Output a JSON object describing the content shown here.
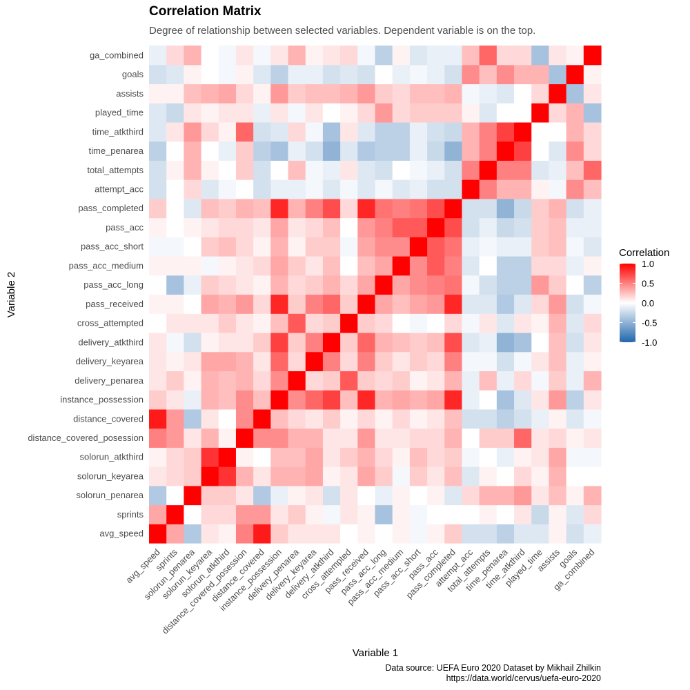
{
  "chart_data": {
    "type": "heatmap",
    "title": "Correlation Matrix",
    "subtitle": "Degree of relationship between selected variables. Dependent variable is on the top.",
    "xlabel": "Variable 1",
    "ylabel": "Variable 2",
    "variables": [
      "avg_speed",
      "sprints",
      "solorun_penarea",
      "solorun_keyarea",
      "solorun_atkthird",
      "distance_covered_posession",
      "distance_covered",
      "instance_possession",
      "delivery_penarea",
      "delivery_keyarea",
      "delivery_atkthird",
      "cross_attempted",
      "pass_received",
      "pass_acc_long",
      "pass_acc_medium",
      "pass_acc_short",
      "pass_acc",
      "pass_completed",
      "attempt_acc",
      "total_attempts",
      "time_penarea",
      "time_atkthird",
      "played_time",
      "assists",
      "goals",
      "ga_combined"
    ],
    "values": [
      [
        1.0,
        0.35,
        -0.35,
        0.1,
        0.05,
        0.5,
        0.9,
        0.2,
        0.1,
        0.1,
        0.1,
        0.0,
        0.05,
        0.0,
        0.05,
        -0.05,
        0.05,
        0.2,
        -0.2,
        -0.2,
        -0.3,
        -0.15,
        -0.15,
        0.05,
        -0.2,
        -0.1
      ],
      [
        0.35,
        1.0,
        0.0,
        0.15,
        0.15,
        0.4,
        0.4,
        0.1,
        0.2,
        0.05,
        -0.05,
        0.1,
        0.05,
        -0.4,
        0.05,
        -0.05,
        0.0,
        0.0,
        0.0,
        0.05,
        0.0,
        0.1,
        -0.25,
        0.05,
        -0.15,
        0.15
      ],
      [
        -0.35,
        0.0,
        1.0,
        0.2,
        0.2,
        0.1,
        -0.35,
        -0.1,
        0.05,
        0.1,
        -0.2,
        0.1,
        0.0,
        -0.1,
        0.05,
        0.0,
        0.05,
        -0.15,
        0.15,
        0.3,
        0.3,
        0.4,
        0.1,
        0.25,
        0.05,
        0.3
      ],
      [
        0.1,
        0.15,
        0.2,
        1.0,
        0.8,
        0.3,
        0.1,
        0.3,
        0.3,
        0.35,
        0.05,
        0.1,
        0.35,
        0.2,
        -0.05,
        0.2,
        0.1,
        0.25,
        -0.15,
        0.05,
        0.0,
        0.15,
        0.05,
        0.3,
        0.0,
        0.0
      ],
      [
        0.05,
        0.15,
        0.2,
        0.8,
        1.0,
        0.05,
        0.0,
        0.25,
        0.25,
        0.35,
        0.1,
        0.2,
        0.3,
        0.15,
        0.05,
        0.25,
        0.15,
        0.2,
        -0.05,
        0.0,
        -0.1,
        0.05,
        0.1,
        0.35,
        -0.05,
        -0.05
      ],
      [
        0.5,
        0.4,
        0.1,
        0.3,
        0.05,
        1.0,
        0.45,
        0.45,
        0.3,
        0.3,
        0.1,
        0.1,
        0.4,
        0.1,
        0.1,
        0.15,
        0.15,
        0.3,
        0.0,
        0.2,
        0.2,
        0.6,
        0.1,
        0.15,
        0.05,
        0.1
      ],
      [
        0.9,
        0.4,
        -0.35,
        0.1,
        0.0,
        0.45,
        1.0,
        0.25,
        0.15,
        0.1,
        0.2,
        0.05,
        0.15,
        0.05,
        0.15,
        0.05,
        0.1,
        0.25,
        -0.2,
        -0.2,
        -0.3,
        -0.2,
        -0.1,
        0.05,
        -0.15,
        -0.05
      ],
      [
        0.2,
        0.1,
        -0.1,
        0.3,
        0.25,
        0.45,
        0.25,
        1.0,
        0.45,
        0.6,
        0.75,
        0.25,
        0.85,
        0.3,
        0.35,
        0.3,
        0.35,
        0.85,
        -0.1,
        0.0,
        -0.4,
        -0.15,
        0.1,
        0.4,
        -0.3,
        0.1
      ],
      [
        0.1,
        0.2,
        0.05,
        0.3,
        0.25,
        0.3,
        0.15,
        0.45,
        1.0,
        0.15,
        0.2,
        0.65,
        0.2,
        0.15,
        0.2,
        0.05,
        0.1,
        0.3,
        -0.1,
        0.25,
        -0.1,
        0.15,
        -0.05,
        0.2,
        -0.1,
        0.3
      ],
      [
        0.1,
        0.05,
        0.1,
        0.35,
        0.35,
        0.3,
        0.1,
        0.6,
        0.15,
        1.0,
        0.5,
        0.15,
        0.5,
        0.2,
        0.1,
        0.2,
        0.15,
        0.5,
        -0.05,
        -0.05,
        -0.2,
        -0.05,
        0.1,
        0.25,
        -0.1,
        0.05
      ],
      [
        0.1,
        -0.05,
        -0.2,
        0.05,
        0.1,
        0.1,
        0.2,
        0.75,
        0.2,
        0.5,
        1.0,
        0.2,
        0.6,
        0.3,
        0.25,
        0.2,
        0.25,
        0.7,
        -0.15,
        -0.1,
        -0.5,
        -0.4,
        0.0,
        0.25,
        -0.2,
        0.1
      ],
      [
        0.0,
        0.1,
        0.1,
        0.1,
        0.2,
        0.1,
        0.05,
        0.25,
        0.65,
        0.15,
        0.2,
        1.0,
        0.2,
        0.15,
        0.0,
        -0.05,
        0.0,
        0.15,
        -0.05,
        0.1,
        -0.15,
        0.1,
        0.05,
        0.3,
        -0.15,
        0.15
      ],
      [
        0.05,
        0.05,
        0.0,
        0.35,
        0.3,
        0.4,
        0.15,
        0.85,
        0.2,
        0.5,
        0.6,
        0.2,
        1.0,
        0.35,
        0.25,
        0.35,
        0.4,
        0.85,
        -0.15,
        -0.15,
        -0.35,
        -0.15,
        0.15,
        0.4,
        -0.2,
        -0.05
      ],
      [
        0.0,
        -0.4,
        -0.1,
        0.2,
        0.15,
        0.1,
        0.05,
        0.3,
        0.15,
        0.2,
        0.3,
        0.15,
        0.35,
        1.0,
        0.35,
        0.45,
        0.5,
        0.55,
        -0.05,
        -0.2,
        -0.3,
        -0.3,
        0.4,
        0.2,
        0.0,
        -0.3
      ],
      [
        0.05,
        0.05,
        0.05,
        -0.05,
        0.05,
        0.1,
        0.15,
        0.35,
        0.2,
        0.1,
        0.25,
        0.0,
        0.25,
        0.35,
        1.0,
        0.45,
        0.65,
        0.5,
        -0.15,
        0.0,
        -0.3,
        -0.3,
        0.15,
        0.15,
        -0.1,
        0.05
      ],
      [
        -0.05,
        -0.05,
        0.0,
        0.2,
        0.25,
        0.15,
        0.05,
        0.3,
        0.05,
        0.2,
        0.2,
        -0.05,
        0.35,
        0.45,
        0.45,
        1.0,
        0.65,
        0.55,
        -0.1,
        -0.05,
        -0.1,
        -0.1,
        0.2,
        0.25,
        -0.05,
        -0.15
      ],
      [
        0.05,
        0.0,
        0.05,
        0.1,
        0.15,
        0.15,
        0.1,
        0.35,
        0.1,
        0.15,
        0.25,
        0.0,
        0.4,
        0.5,
        0.65,
        0.65,
        1.0,
        0.7,
        -0.2,
        -0.1,
        -0.25,
        -0.2,
        0.2,
        0.25,
        -0.1,
        -0.1
      ],
      [
        0.2,
        0.0,
        -0.15,
        0.25,
        0.2,
        0.3,
        0.25,
        0.85,
        0.3,
        0.5,
        0.7,
        0.15,
        0.85,
        0.55,
        0.5,
        0.55,
        0.7,
        1.0,
        -0.2,
        -0.2,
        -0.5,
        -0.25,
        0.2,
        0.3,
        -0.2,
        -0.1
      ],
      [
        -0.2,
        0.0,
        0.15,
        -0.15,
        -0.05,
        0.0,
        -0.2,
        -0.1,
        -0.1,
        -0.05,
        -0.15,
        -0.05,
        -0.15,
        -0.05,
        -0.15,
        -0.1,
        -0.2,
        -0.2,
        1.0,
        0.5,
        0.3,
        0.3,
        0.05,
        -0.05,
        0.45,
        0.25
      ],
      [
        -0.2,
        0.05,
        0.3,
        0.05,
        0.0,
        0.2,
        -0.2,
        0.0,
        0.25,
        -0.05,
        -0.1,
        0.1,
        -0.15,
        -0.2,
        0.0,
        -0.05,
        -0.1,
        -0.2,
        0.5,
        1.0,
        0.5,
        0.5,
        -0.15,
        -0.1,
        0.25,
        0.6
      ],
      [
        -0.3,
        0.0,
        0.3,
        0.0,
        -0.1,
        0.2,
        -0.3,
        -0.4,
        -0.1,
        -0.2,
        -0.5,
        -0.15,
        -0.35,
        -0.3,
        -0.3,
        -0.1,
        -0.25,
        -0.5,
        0.3,
        0.5,
        1.0,
        0.75,
        0.0,
        -0.15,
        0.45,
        0.15
      ],
      [
        -0.15,
        0.1,
        0.4,
        0.15,
        0.05,
        0.6,
        -0.2,
        -0.15,
        0.15,
        -0.05,
        -0.4,
        0.1,
        -0.15,
        -0.3,
        -0.3,
        -0.1,
        -0.2,
        -0.25,
        0.3,
        0.5,
        0.75,
        1.0,
        0.0,
        0.0,
        0.3,
        0.15
      ],
      [
        -0.15,
        -0.25,
        0.1,
        0.05,
        0.1,
        0.1,
        -0.1,
        0.1,
        -0.05,
        0.1,
        0.0,
        0.05,
        0.15,
        0.4,
        0.15,
        0.2,
        0.2,
        0.2,
        0.05,
        -0.15,
        0.0,
        0.0,
        1.0,
        0.15,
        0.3,
        -0.4
      ],
      [
        0.05,
        0.05,
        0.25,
        0.3,
        0.35,
        0.15,
        0.05,
        0.4,
        0.2,
        0.25,
        0.25,
        0.3,
        0.4,
        0.2,
        0.15,
        0.25,
        0.25,
        0.3,
        -0.05,
        -0.1,
        -0.15,
        0.0,
        0.15,
        1.0,
        -0.4,
        0.1
      ],
      [
        -0.2,
        -0.15,
        0.05,
        0.0,
        -0.05,
        0.05,
        -0.15,
        -0.3,
        -0.1,
        -0.1,
        -0.2,
        -0.15,
        -0.2,
        0.0,
        -0.1,
        -0.05,
        -0.1,
        -0.2,
        0.45,
        0.25,
        0.45,
        0.3,
        0.3,
        -0.4,
        1.0,
        0.05
      ],
      [
        -0.1,
        0.15,
        0.3,
        0.0,
        -0.05,
        0.1,
        -0.05,
        0.1,
        0.3,
        0.05,
        0.1,
        0.15,
        -0.05,
        -0.3,
        0.05,
        -0.15,
        -0.1,
        -0.1,
        0.25,
        0.6,
        0.15,
        0.15,
        -0.4,
        0.1,
        0.05,
        1.0
      ]
    ],
    "legend": {
      "title": "Correlation",
      "breaks": [
        "1.0",
        "0.5",
        "0.0",
        "-0.5",
        "-1.0"
      ],
      "break_values": [
        1.0,
        0.5,
        0.0,
        -0.5,
        -1.0
      ],
      "placement": "right"
    },
    "colors": {
      "low": "#2166ac",
      "mid": "#ffffff",
      "high": "#ff0000"
    },
    "grid": false,
    "caption": [
      "Data source: UEFA Euro 2020 Dataset by Mikhail Zhilkin",
      "https://data.world/cervus/uefa-euro-2020"
    ]
  }
}
